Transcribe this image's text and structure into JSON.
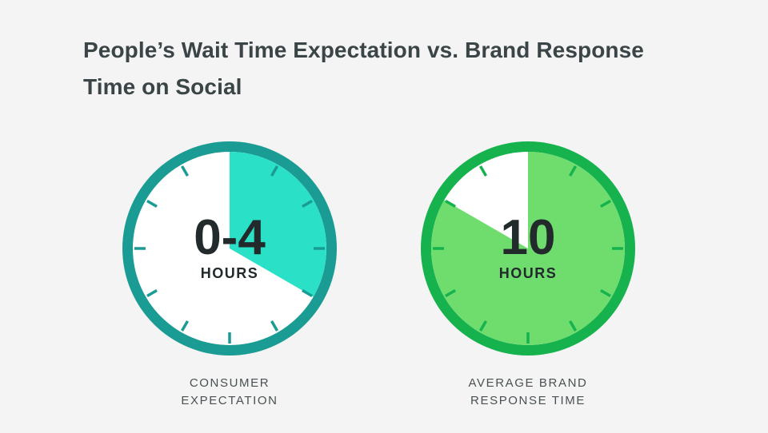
{
  "title": {
    "line1": "People’s Wait Time Expectation vs. Brand Response",
    "line2": "Time on Social"
  },
  "colors": {
    "background": "#f3f4f3",
    "title": "#3b4446",
    "teal_ring": "#1a9c94",
    "teal_fill": "#2ae0c6",
    "green_ring": "#16b24e",
    "green_fill": "#6fdc6e",
    "face": "#ffffff",
    "number": "#222a2c"
  },
  "chart_data": [
    {
      "type": "pie",
      "name": "consumer-expectation",
      "value_hours": 4,
      "scale_hours": 12,
      "big_label": "0-4",
      "unit_label": "HOURS",
      "caption": [
        "CONSUMER",
        "EXPECTATION"
      ],
      "ring_color": "#1a9c94",
      "fill_color": "#2ae0c6"
    },
    {
      "type": "pie",
      "name": "average-brand-response-time",
      "value_hours": 10,
      "scale_hours": 12,
      "big_label": "10",
      "unit_label": "HOURS",
      "caption": [
        "AVERAGE BRAND",
        "RESPONSE TIME"
      ],
      "ring_color": "#16b24e",
      "fill_color": "#6fdc6e"
    }
  ]
}
